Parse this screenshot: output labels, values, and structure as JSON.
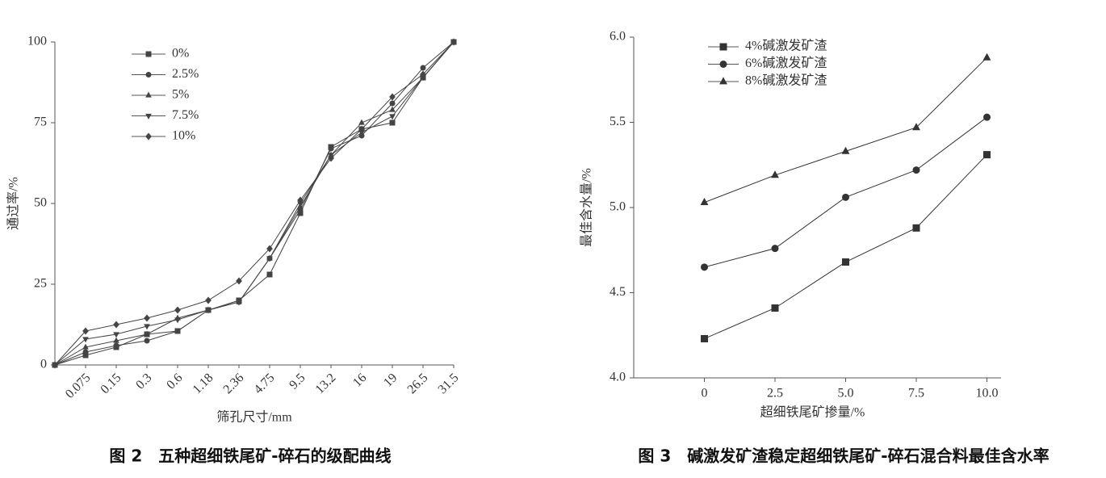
{
  "chart_data": [
    {
      "type": "line",
      "title": "图 2　五种超细铁尾矿-碎石的级配曲线",
      "x_label": "筛孔尺寸/mm",
      "y_label": "通过率/%",
      "categories": [
        null,
        "0.075",
        "0.15",
        "0.3",
        "0.6",
        "1.18",
        "2.36",
        "4.75",
        "9.5",
        "13.2",
        "16",
        "19",
        "26.5",
        "31.5"
      ],
      "ylim": [
        0,
        100
      ],
      "yticks": [
        0,
        25,
        50,
        75,
        100
      ],
      "grid": false,
      "legend": "upper left",
      "series": [
        {
          "name": "0%",
          "color": "#444444",
          "marker": "square",
          "values": [
            0,
            3,
            5.5,
            9.5,
            10.5,
            17,
            20,
            28,
            47,
            67.5,
            73,
            75,
            89,
            100
          ]
        },
        {
          "name": "2.5%",
          "color": "#444444",
          "marker": "circle",
          "values": [
            0,
            4,
            6,
            7.5,
            10.5,
            17,
            19.5,
            33,
            48,
            67,
            71,
            81,
            92,
            100
          ]
        },
        {
          "name": "5%",
          "color": "#444444",
          "marker": "triangle-up",
          "values": [
            0,
            5.5,
            7.5,
            9.5,
            14.5,
            17,
            19.5,
            33,
            49,
            65,
            75,
            79,
            89,
            100
          ]
        },
        {
          "name": "7.5%",
          "color": "#444444",
          "marker": "triangle-down",
          "values": [
            0,
            8,
            9.5,
            12,
            14,
            17,
            19.5,
            33,
            50,
            65,
            72,
            77,
            89,
            100
          ]
        },
        {
          "name": "10%",
          "color": "#444444",
          "marker": "diamond",
          "values": [
            0,
            10.5,
            12.5,
            14.5,
            17,
            20,
            26,
            36,
            51,
            64,
            73,
            83,
            90,
            100
          ]
        }
      ]
    },
    {
      "type": "line",
      "title": "图 3　碱激发矿渣稳定超细铁尾矿-碎石混合料最佳含水率",
      "x_label": "超细铁尾矿掺量/%",
      "y_label": "最佳含水量/%",
      "x": [
        0,
        2.5,
        5,
        7.5,
        10
      ],
      "xlim": [
        -2.5,
        10.5
      ],
      "xticks": [
        0,
        2.5,
        {
          "value": 5,
          "label": "5.0"
        },
        7.5,
        {
          "value": 10,
          "label": "10.0"
        }
      ],
      "ylim": [
        4,
        6
      ],
      "yticks": [
        {
          "value": 4,
          "label": "4.0"
        },
        4.5,
        {
          "value": 5,
          "label": "5.0"
        },
        5.5,
        {
          "value": 6,
          "label": "6.0"
        }
      ],
      "grid": false,
      "legend": "upper left",
      "series": [
        {
          "name": "4%碱激发矿渣",
          "color": "#333333",
          "marker": "square",
          "values": [
            4.23,
            4.41,
            4.68,
            4.88,
            5.31
          ]
        },
        {
          "name": "6%碱激发矿渣",
          "color": "#333333",
          "marker": "circle",
          "values": [
            4.65,
            4.76,
            5.06,
            5.22,
            5.53
          ]
        },
        {
          "name": "8%碱激发矿渣",
          "color": "#333333",
          "marker": "triangle-up",
          "values": [
            5.03,
            5.19,
            5.33,
            5.47,
            5.88
          ]
        }
      ]
    }
  ]
}
